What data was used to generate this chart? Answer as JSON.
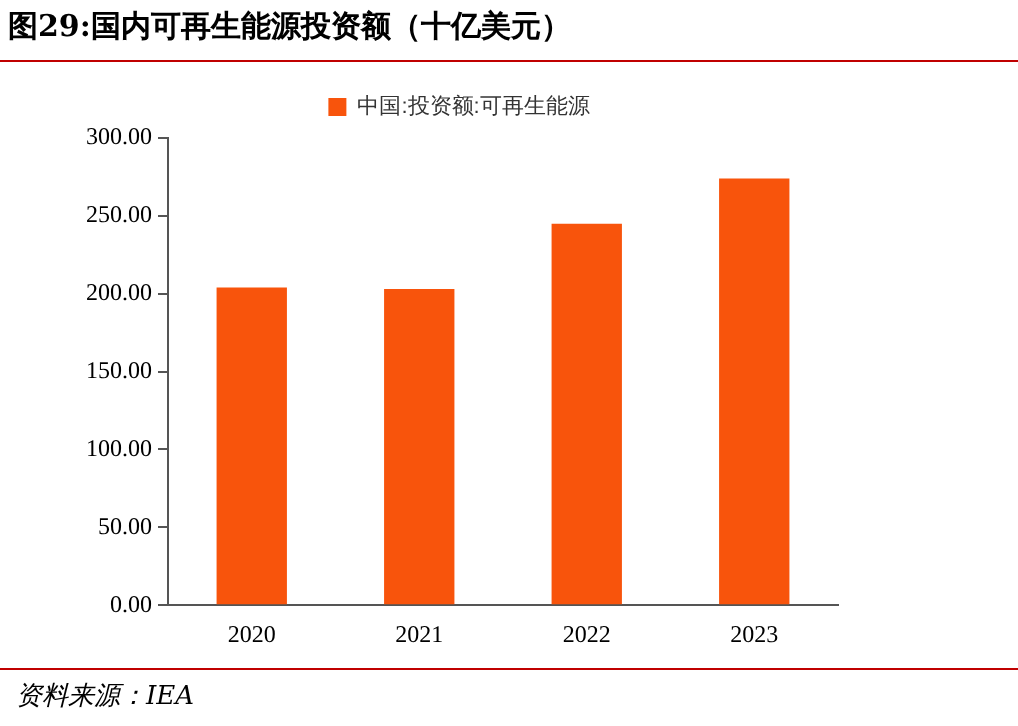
{
  "chart_data": {
    "type": "bar",
    "title": "图29:国内可再生能源投资额（十亿美元）",
    "categories": [
      "2020",
      "2021",
      "2022",
      "2023"
    ],
    "series": [
      {
        "name": "中国:投资额:可再生能源",
        "color": "#f8540c",
        "values": [
          204,
          203,
          245,
          274
        ]
      }
    ],
    "ylim": [
      0,
      300
    ],
    "yticks": [
      {
        "value": 0,
        "label": "0.00"
      },
      {
        "value": 50,
        "label": "50.00"
      },
      {
        "value": 100,
        "label": "100.00"
      },
      {
        "value": 150,
        "label": "150.00"
      },
      {
        "value": 200,
        "label": "200.00"
      },
      {
        "value": 250,
        "label": "250.00"
      },
      {
        "value": 300,
        "label": "300.00"
      }
    ],
    "grid": false,
    "legend": "top",
    "annotations": [
      "资料来源：IEA"
    ]
  }
}
